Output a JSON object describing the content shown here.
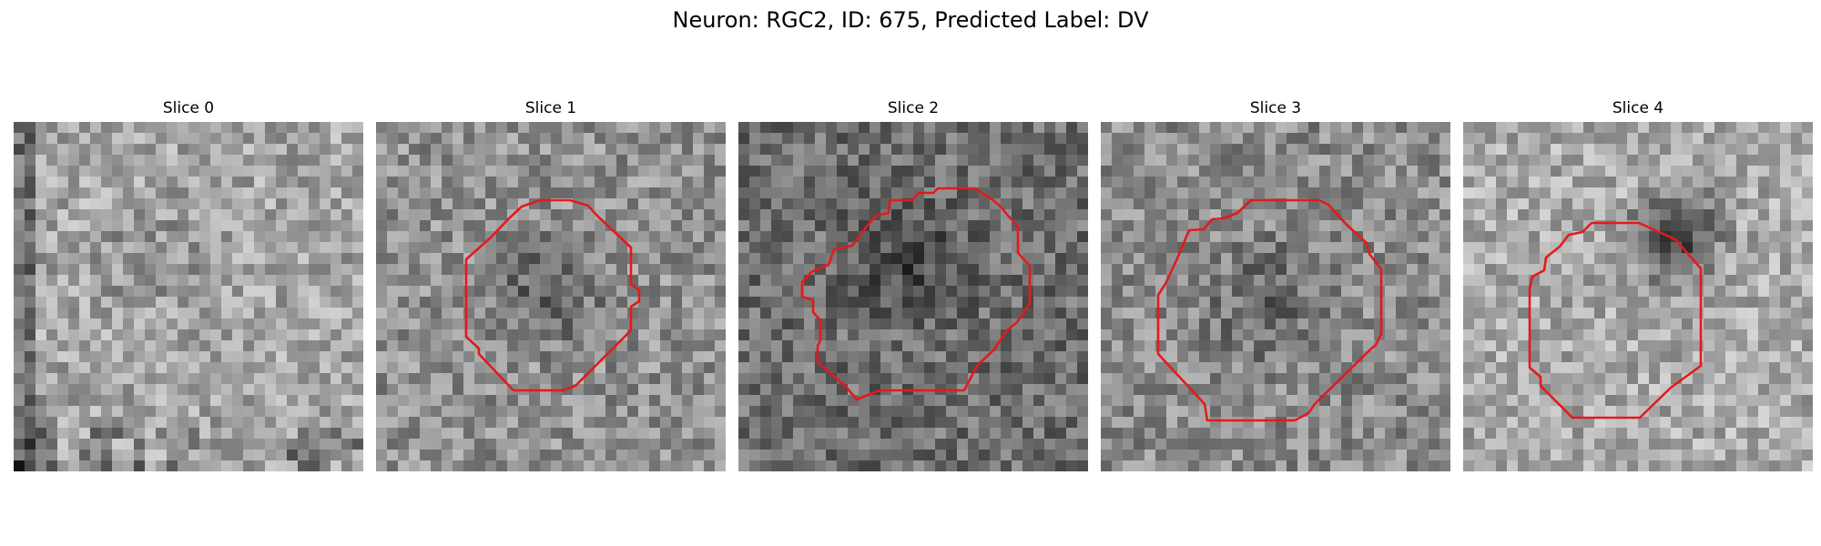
{
  "figure": {
    "title": "Neuron: RGC2, ID: 675, Predicted Label: DV",
    "contour_color": "#e31a1c",
    "slices": [
      {
        "label": "Slice 0",
        "has_contour": false,
        "seed": 11,
        "base": 165,
        "dark_x": 12,
        "dark_y": 12,
        "dark_r": 7,
        "dark_amt": 25
      },
      {
        "label": "Slice 1",
        "has_contour": true,
        "seed": 23,
        "base": 145,
        "dark_x": 15,
        "dark_y": 15,
        "dark_r": 7,
        "dark_amt": 55
      },
      {
        "label": "Slice 2",
        "has_contour": true,
        "seed": 37,
        "base": 110,
        "dark_x": 15,
        "dark_y": 12,
        "dark_r": 8,
        "dark_amt": 45
      },
      {
        "label": "Slice 3",
        "has_contour": true,
        "seed": 41,
        "base": 140,
        "dark_x": 15,
        "dark_y": 16,
        "dark_r": 8,
        "dark_amt": 45
      },
      {
        "label": "Slice 4",
        "has_contour": true,
        "seed": 53,
        "base": 170,
        "dark_x": 19,
        "dark_y": 10,
        "dark_r": 6,
        "dark_amt": 110
      }
    ]
  }
}
